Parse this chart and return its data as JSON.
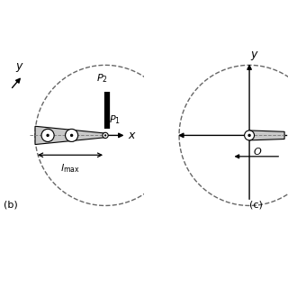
{
  "bg_color": "#ffffff",
  "arm_color": "#c8c8c8",
  "arm_edge_color": "#000000",
  "dashed_color": "#666666",
  "panel_b_label": "(b)",
  "panel_c_label": "(c)"
}
